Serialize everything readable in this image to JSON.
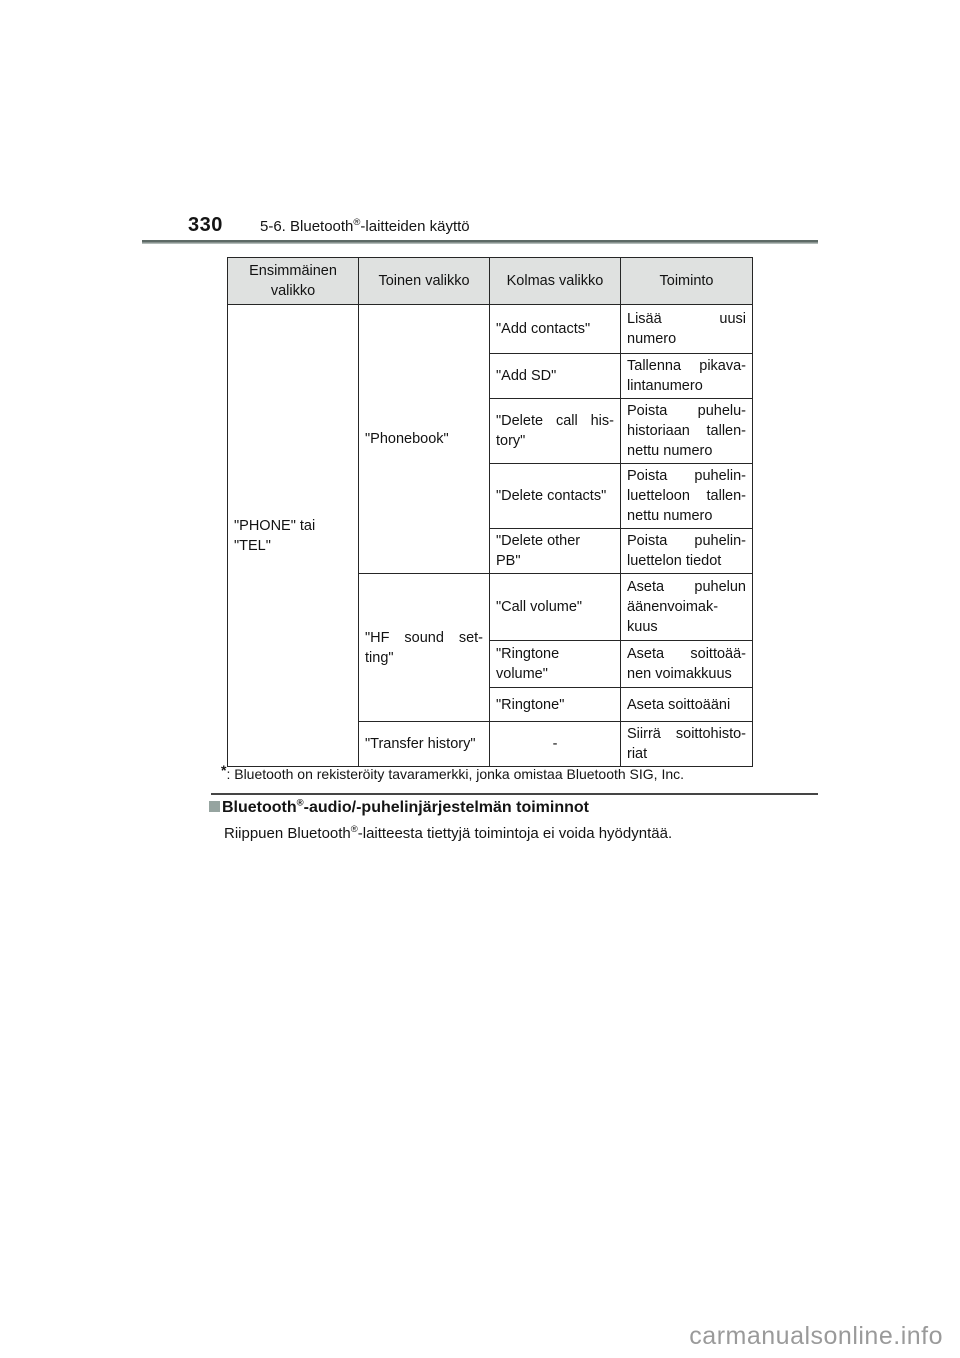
{
  "page_header": {
    "page_number": "330",
    "chapter_prefix": "5-6. Bluetooth",
    "chapter_sup": "®",
    "chapter_suffix": "-laitteiden käyttö"
  },
  "table": {
    "headers": [
      "Ensimmäinen valikko",
      "Toinen valikko",
      "Kolmas valikko",
      "Toiminto"
    ],
    "rows": [
      {
        "cells": [
          {
            "col": 0,
            "rowspan": 9,
            "lines": [
              "\"PHONE\" tai",
              "\"TEL\""
            ]
          },
          {
            "col": 1,
            "rowspan": 5,
            "lines": [
              "\"Phonebook\""
            ]
          },
          {
            "col": 2,
            "lines": [
              "\"Add contacts\""
            ]
          },
          {
            "col": 3,
            "justify": true,
            "lines": [
              "Lisää uusi",
              "numero"
            ]
          }
        ]
      },
      {
        "cells": [
          {
            "col": 2,
            "lines": [
              "\"Add SD\""
            ]
          },
          {
            "col": 3,
            "justify": true,
            "lines": [
              "Tallenna pikava-",
              "lintanumero"
            ]
          }
        ]
      },
      {
        "cells": [
          {
            "col": 2,
            "justify": true,
            "lines": [
              "\"Delete call his-",
              "tory\""
            ]
          },
          {
            "col": 3,
            "justify": true,
            "lines": [
              "Poista puhelu-",
              "historiaan tallen-",
              "nettu numero"
            ]
          }
        ]
      },
      {
        "cells": [
          {
            "col": 2,
            "lines": [
              "\"Delete contacts\""
            ]
          },
          {
            "col": 3,
            "justify": true,
            "lines": [
              "Poista puhelin-",
              "luetteloon tallen-",
              "nettu numero"
            ]
          }
        ]
      },
      {
        "cells": [
          {
            "col": 2,
            "lines": [
              "\"Delete other",
              "PB\""
            ]
          },
          {
            "col": 3,
            "justify": true,
            "lines": [
              "Poista puhelin-",
              "luettelon tiedot"
            ]
          }
        ]
      },
      {
        "cells": [
          {
            "col": 1,
            "rowspan": 3,
            "justify": true,
            "lines": [
              "\"HF sound set-",
              "ting\""
            ]
          },
          {
            "col": 2,
            "lines": [
              "\"Call volume\""
            ]
          },
          {
            "col": 3,
            "justify": true,
            "lines": [
              "Aseta puhelun",
              "äänenvoimak-",
              "kuus"
            ]
          }
        ]
      },
      {
        "cells": [
          {
            "col": 2,
            "lines": [
              "\"Ringtone",
              "volume\""
            ]
          },
          {
            "col": 3,
            "justify": true,
            "lines": [
              "Aseta soittoää-",
              "nen voimakkuus"
            ]
          }
        ]
      },
      {
        "cells": [
          {
            "col": 2,
            "lines": [
              "\"Ringtone\""
            ]
          },
          {
            "col": 3,
            "lines": [
              "Aseta soittoääni"
            ]
          }
        ]
      },
      {
        "cells": [
          {
            "col": 1,
            "lines": [
              "\"Transfer history\""
            ]
          },
          {
            "col": 2,
            "align": "center",
            "lines": [
              "-"
            ]
          },
          {
            "col": 3,
            "justify": true,
            "lines": [
              "Siirrä soittohisto-",
              "riat"
            ]
          }
        ]
      }
    ]
  },
  "footnote": {
    "marker": "*",
    "text": ": Bluetooth on rekisteröity tavaramerkki, jonka omistaa Bluetooth SIG, Inc."
  },
  "section": {
    "title_prefix": "Bluetooth",
    "title_sup": "®",
    "title_suffix": "-audio/-puhelinjärjestelmän toiminnot",
    "body_prefix": "Riippuen Bluetooth",
    "body_sup": "®",
    "body_suffix": "-laitteesta tiettyjä toimintoja ei voida hyödyntää."
  },
  "watermark": "carmanualsonline.info"
}
